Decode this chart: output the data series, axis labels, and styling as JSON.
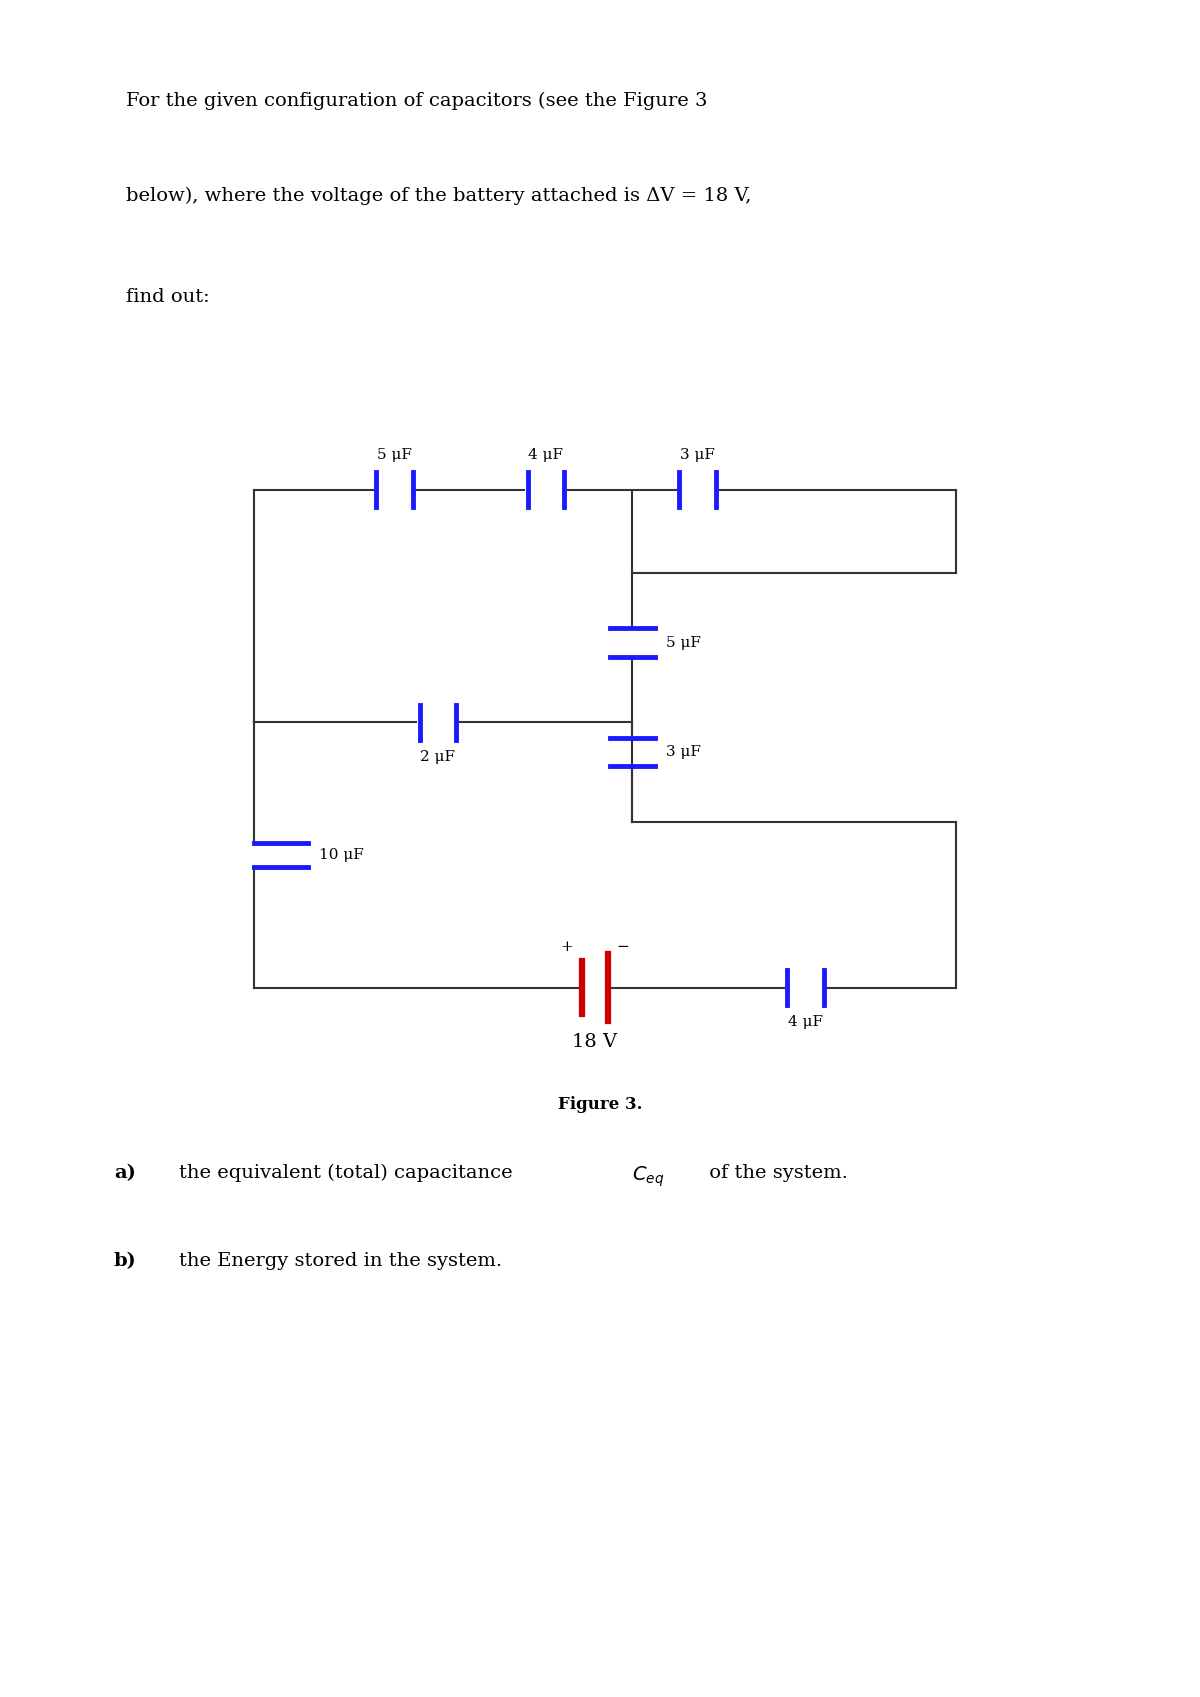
{
  "cap_color": "#1a1aff",
  "battery_color": "#cc0000",
  "wire_color": "#333333",
  "background": "#ffffff",
  "figsize": [
    12.0,
    16.97
  ],
  "dpi": 100,
  "figure_label": "Figure 3.",
  "header_line1": "For the given configuration of capacitors (see the Figure 3",
  "header_line2": "below), where the voltage of the battery attached is ΔV = 18 V,",
  "header_line3": "find out:",
  "voltage": "18 V",
  "caps_top": [
    "5 μF",
    "4 μF",
    "3 μF"
  ],
  "cap_mid": "2 μF",
  "cap_left": "10 μF",
  "caps_inner": [
    "5 μF",
    "3 μF"
  ],
  "cap_bot": "4 μF"
}
